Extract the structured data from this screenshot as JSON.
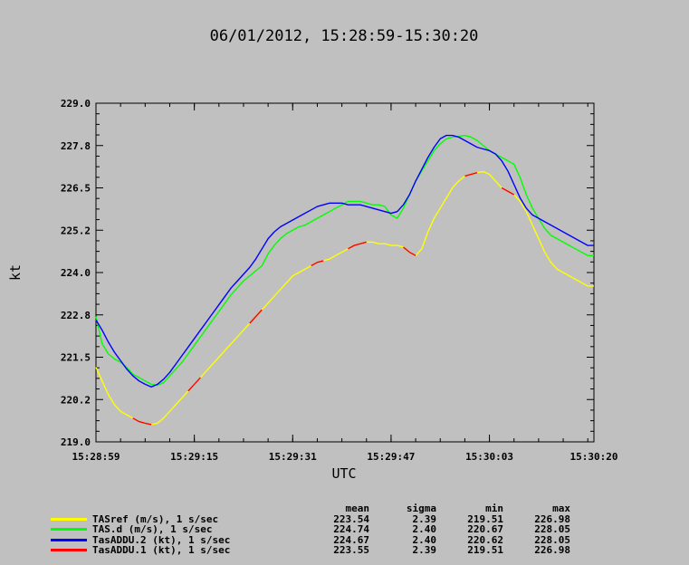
{
  "chart_data": {
    "type": "line",
    "title": "06/01/2012, 15:28:59-15:30:20",
    "xlabel": "UTC",
    "ylabel": "kt",
    "ylim": [
      219.0,
      229.0
    ],
    "xlim": [
      0,
      81
    ],
    "yticks": [
      "219.0",
      "220.2",
      "221.5",
      "222.8",
      "224.0",
      "225.2",
      "226.5",
      "227.8",
      "229.0"
    ],
    "xticks": [
      {
        "t": 0,
        "label": "15:28:59"
      },
      {
        "t": 16,
        "label": "15:29:15"
      },
      {
        "t": 32,
        "label": "15:29:31"
      },
      {
        "t": 48,
        "label": "15:29:47"
      },
      {
        "t": 64,
        "label": "15:30:03"
      },
      {
        "t": 81,
        "label": "15:30:20"
      }
    ],
    "grid": false,
    "legend_position": "bottom",
    "stat_headers": [
      "mean",
      "sigma",
      "min",
      "max"
    ],
    "series": [
      {
        "name": "TASref (m/s), 1 s/sec",
        "color": "#ffff00",
        "mean": "223.54",
        "sigma": "2.39",
        "min": "219.51",
        "max": "226.98",
        "values": [
          221.2,
          220.8,
          220.4,
          220.1,
          219.9,
          219.8,
          219.7,
          219.6,
          219.55,
          219.51,
          219.55,
          219.7,
          219.9,
          220.1,
          220.3,
          220.5,
          220.7,
          220.9,
          221.1,
          221.3,
          221.5,
          221.7,
          221.9,
          222.1,
          222.3,
          222.5,
          222.7,
          222.9,
          223.1,
          223.3,
          223.5,
          223.7,
          223.9,
          224.0,
          224.1,
          224.2,
          224.3,
          224.35,
          224.4,
          224.5,
          224.6,
          224.7,
          224.8,
          224.85,
          224.9,
          224.9,
          224.85,
          224.85,
          224.8,
          224.8,
          224.75,
          224.6,
          224.5,
          224.7,
          225.2,
          225.6,
          225.9,
          226.2,
          226.5,
          226.7,
          226.85,
          226.9,
          226.95,
          226.98,
          226.9,
          226.7,
          226.5,
          226.4,
          226.3,
          226.1,
          225.8,
          225.4,
          225.0,
          224.6,
          224.3,
          224.1,
          224.0,
          223.9,
          223.8,
          223.7,
          223.6,
          223.6
        ],
        "visible_until": 75
      },
      {
        "name": "TAS.d (m/s), 1 s/sec",
        "color": "#00ff00",
        "mean": "224.74",
        "sigma": "2.40",
        "min": "220.67",
        "max": "228.05",
        "values": [
          222.7,
          221.9,
          221.6,
          221.45,
          221.35,
          221.2,
          221.0,
          220.9,
          220.8,
          220.7,
          220.67,
          220.75,
          220.95,
          221.15,
          221.35,
          221.6,
          221.85,
          222.1,
          222.35,
          222.6,
          222.85,
          223.1,
          223.35,
          223.55,
          223.75,
          223.9,
          224.05,
          224.2,
          224.55,
          224.8,
          225.0,
          225.15,
          225.25,
          225.35,
          225.4,
          225.5,
          225.6,
          225.7,
          225.8,
          225.9,
          226.0,
          226.1,
          226.1,
          226.1,
          226.05,
          226.0,
          226.0,
          225.95,
          225.7,
          225.6,
          225.9,
          226.3,
          226.7,
          227.0,
          227.3,
          227.6,
          227.8,
          227.95,
          228.0,
          228.02,
          228.05,
          228.0,
          227.9,
          227.75,
          227.6,
          227.5,
          227.4,
          227.3,
          227.2,
          226.8,
          226.3,
          225.9,
          225.6,
          225.3,
          225.1,
          225.0,
          224.9,
          224.8,
          224.7,
          224.6,
          224.5,
          224.5
        ],
        "visible_until": 75
      },
      {
        "name": "TasADDU.2 (kt), 1 s/sec",
        "color": "#0000ff",
        "mean": "224.67",
        "sigma": "2.40",
        "min": "220.62",
        "max": "228.05",
        "values": [
          222.6,
          222.3,
          221.95,
          221.65,
          221.4,
          221.15,
          220.95,
          220.8,
          220.7,
          220.62,
          220.7,
          220.85,
          221.05,
          221.3,
          221.55,
          221.8,
          222.05,
          222.3,
          222.55,
          222.8,
          223.05,
          223.3,
          223.55,
          223.75,
          223.95,
          224.15,
          224.4,
          224.7,
          225.0,
          225.2,
          225.35,
          225.45,
          225.55,
          225.65,
          225.75,
          225.85,
          225.95,
          226.0,
          226.05,
          226.05,
          226.05,
          226.0,
          226.0,
          226.0,
          225.95,
          225.9,
          225.85,
          225.8,
          225.75,
          225.8,
          226.0,
          226.3,
          226.7,
          227.05,
          227.4,
          227.7,
          227.95,
          228.05,
          228.05,
          228.0,
          227.9,
          227.8,
          227.7,
          227.65,
          227.6,
          227.5,
          227.3,
          227.0,
          226.6,
          226.2,
          225.9,
          225.7,
          225.6,
          225.5,
          225.4,
          225.3,
          225.2,
          225.1,
          225.0,
          224.9,
          224.8,
          224.8
        ],
        "visible_until": 75
      },
      {
        "name": "TasADDU.1 (kt), 1 s/sec",
        "color": "#ff0000",
        "mean": "223.55",
        "sigma": "2.39",
        "min": "219.51",
        "max": "226.98",
        "segments": [
          [
            6,
            9
          ],
          [
            15,
            17
          ],
          [
            25,
            27
          ],
          [
            35,
            37
          ],
          [
            41,
            44
          ],
          [
            50,
            52
          ],
          [
            60,
            62
          ],
          [
            66,
            68
          ]
        ]
      }
    ]
  }
}
